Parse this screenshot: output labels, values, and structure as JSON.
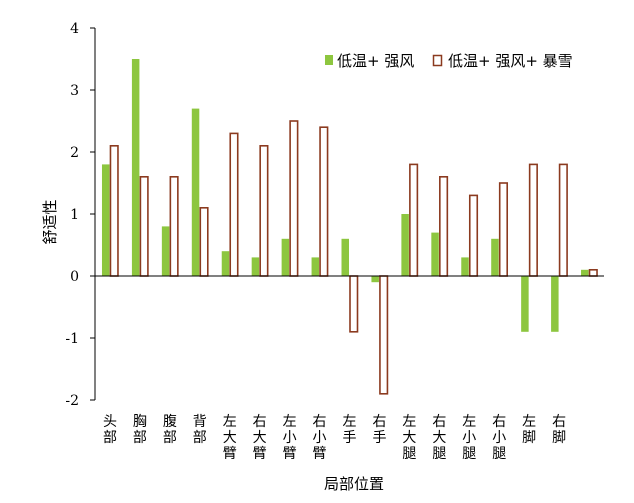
{
  "chart_data": {
    "type": "bar",
    "xlabel": "局部位置",
    "ylabel": "舒适性",
    "ylim": [
      -2,
      4
    ],
    "yticks": [
      -2,
      -1,
      0,
      1,
      2,
      3,
      4
    ],
    "grid": false,
    "legend_position": "top-right",
    "categories": [
      "头部",
      "胸部",
      "腹部",
      "背部",
      "左大臂",
      "右大臂",
      "左小臂",
      "右小臂",
      "左手",
      "右手",
      "左大腿",
      "右大腿",
      "左小腿",
      "右小腿",
      "左脚",
      "右脚",
      ""
    ],
    "series": [
      {
        "name": "低温+ 强风",
        "color": "#8DC63F",
        "style": "filled",
        "values": [
          1.8,
          3.5,
          0.8,
          2.7,
          0.4,
          0.3,
          0.6,
          0.3,
          0.6,
          -0.1,
          1.0,
          0.7,
          0.3,
          0.6,
          -0.9,
          -0.9,
          0.1
        ]
      },
      {
        "name": "低温+ 强风+ 暴雪",
        "color": "#8B3A1F",
        "style": "outline",
        "values": [
          2.1,
          1.6,
          1.6,
          1.1,
          2.3,
          2.1,
          2.5,
          2.4,
          -0.9,
          -1.9,
          1.8,
          1.6,
          1.3,
          1.5,
          1.8,
          1.8,
          0.1
        ]
      }
    ]
  }
}
